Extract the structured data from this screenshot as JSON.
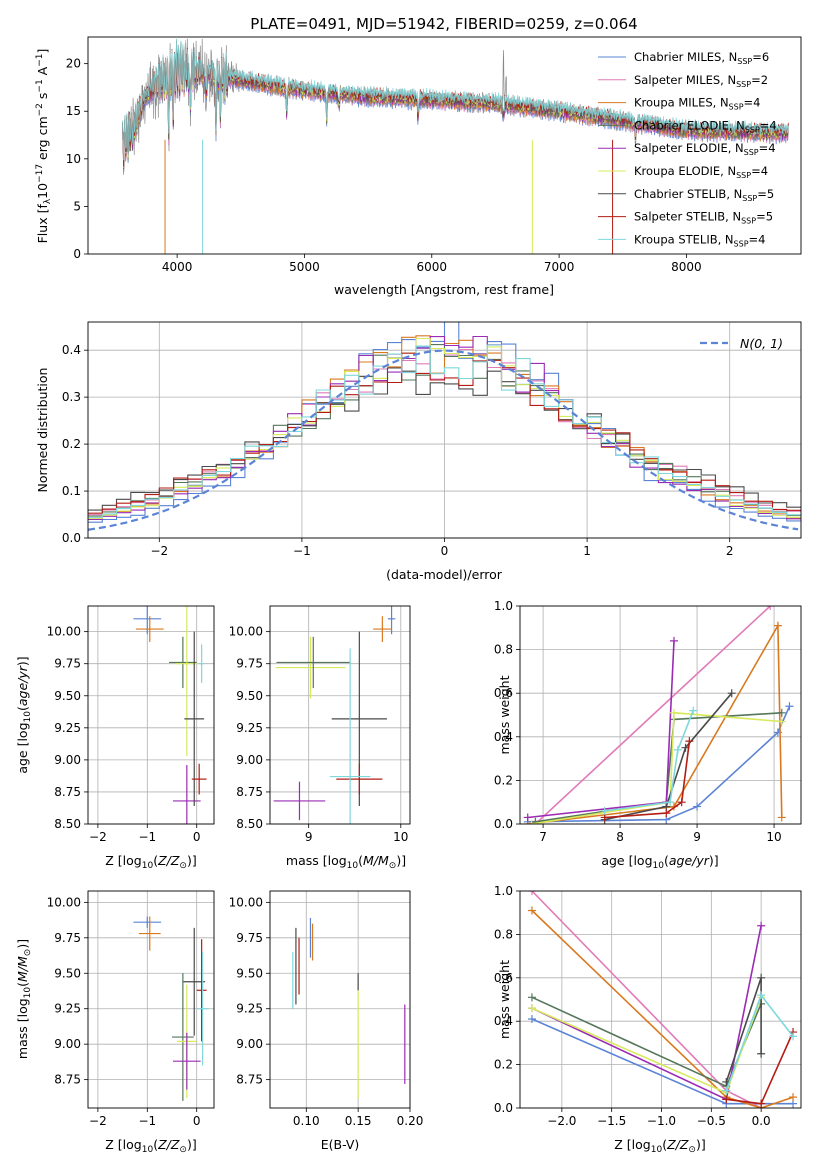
{
  "figure_title": "PLATE=0491, MJD=51942, FIBERID=0259, z=0.064",
  "colors": {
    "Chabrier MILES": "#5b84d6",
    "Salpeter MILES": "#e07bb8",
    "Kroupa MILES": "#d9791f",
    "Chabrier ELODIE": "#55775b",
    "Salpeter ELODIE": "#9b2bb4",
    "Kroupa ELODIE": "#d8ea5c",
    "Chabrier STELIB": "#4a4a4a",
    "Salpeter STELIB": "#b31d14",
    "Kroupa STELIB": "#7fd7dc",
    "data": "#888888",
    "gaussian": "#5b84d6"
  },
  "chart_data": [
    {
      "id": "spectrum",
      "type": "line",
      "xlabel": "wavelength [Angstrom, rest frame]",
      "ylabel": "Flux [f",
      "ylabel_full": "Flux [fλ10−17 erg cm−2 s−1 A−1]",
      "xlim": [
        3300,
        8900
      ],
      "ylim": [
        0,
        22.8
      ],
      "xticks": [
        "4000",
        "5000",
        "6000",
        "7000",
        "8000"
      ],
      "yticks": [
        "0",
        "5",
        "10",
        "15",
        "20"
      ],
      "legend_position": "top-right",
      "series": [
        {
          "name": "Chabrier MILES, NSSP=6",
          "label": "Chabrier MILES, N",
          "sub": "SSP",
          "suffix": "=6"
        },
        {
          "name": "Salpeter MILES, NSSP=2",
          "label": "Salpeter MILES, N",
          "sub": "SSP",
          "suffix": "=2"
        },
        {
          "name": "Kroupa MILES, NSSP=4",
          "label": "Kroupa MILES, N",
          "sub": "SSP",
          "suffix": "=4"
        },
        {
          "name": "Chabrier ELODIE, NSSP=4",
          "label": "Chabrier ELODIE, N",
          "sub": "SSP",
          "suffix": "=4"
        },
        {
          "name": "Salpeter ELODIE, NSSP=4",
          "label": "Salpeter ELODIE, N",
          "sub": "SSP",
          "suffix": "=4"
        },
        {
          "name": "Kroupa ELODIE, NSSP=4",
          "label": "Kroupa ELODIE, N",
          "sub": "SSP",
          "suffix": "=4"
        },
        {
          "name": "Chabrier STELIB, NSSP=5",
          "label": "Chabrier STELIB, N",
          "sub": "SSP",
          "suffix": "=5"
        },
        {
          "name": "Salpeter STELIB, NSSP=5",
          "label": "Salpeter STELIB, N",
          "sub": "SSP",
          "suffix": "=5"
        },
        {
          "name": "Kroupa STELIB, NSSP=4",
          "label": "Kroupa STELIB, N",
          "sub": "SSP",
          "suffix": "=4"
        }
      ],
      "continuum": [
        [
          3570,
          11.5
        ],
        [
          3650,
          13.0
        ],
        [
          3750,
          16.5
        ],
        [
          3850,
          18.0
        ],
        [
          3950,
          19.0
        ],
        [
          4050,
          19.5
        ],
        [
          4200,
          19.0
        ],
        [
          4400,
          18.5
        ],
        [
          4700,
          17.8
        ],
        [
          5000,
          17.2
        ],
        [
          5500,
          16.5
        ],
        [
          6000,
          16.2
        ],
        [
          6500,
          15.8
        ],
        [
          7000,
          15.0
        ],
        [
          7500,
          14.0
        ],
        [
          8000,
          13.0
        ],
        [
          8500,
          12.8
        ],
        [
          8800,
          12.7
        ]
      ],
      "absorption_lines": [
        [
          3933,
          5.0
        ],
        [
          3968,
          3.5
        ],
        [
          4102,
          4.0
        ],
        [
          4227,
          2.5
        ],
        [
          4304,
          5.0
        ],
        [
          4340,
          3.0
        ],
        [
          4861,
          2.5
        ],
        [
          5175,
          2.5
        ],
        [
          5270,
          1.5
        ],
        [
          5893,
          2.0
        ],
        [
          6563,
          1.5
        ],
        [
          7600,
          1.5
        ]
      ],
      "emission_lines": [
        [
          6563,
          22.0
        ],
        [
          6583,
          19.0
        ]
      ]
    },
    {
      "id": "residuals",
      "type": "bar",
      "xlabel": "(data-model)/error",
      "ylabel": "Normed distribution",
      "xlim": [
        -2.5,
        2.5
      ],
      "ylim": [
        0,
        0.46
      ],
      "xticks": [
        "−2",
        "−1",
        "0",
        "1",
        "2"
      ],
      "yticks": [
        "0.0",
        "0.1",
        "0.2",
        "0.3",
        "0.4"
      ],
      "legend_position": "top-right",
      "legend": "N(0, 1)",
      "bin_width": 0.1,
      "series_amplitudes": [
        0.43,
        0.36,
        0.39,
        0.37,
        0.4,
        0.39,
        0.33,
        0.35,
        0.38
      ]
    },
    {
      "id": "age-vs-Z",
      "type": "scatter",
      "xlabel": "Z [log10(Z/Z⊙)]",
      "ylabel": "age  [log10(age/yr)]",
      "xlim": [
        -2.2,
        0.35
      ],
      "ylim": [
        8.5,
        10.2
      ],
      "xticks": [
        "−2",
        "−1",
        "0"
      ],
      "yticks": [
        "8.50",
        "8.75",
        "9.00",
        "9.25",
        "9.50",
        "9.75",
        "10.00"
      ],
      "points": [
        {
          "series": "Chabrier MILES",
          "x": -1.0,
          "y": 10.1,
          "xerr": 0.28,
          "yerr": 0.12
        },
        {
          "series": "Kroupa MILES",
          "x": -0.95,
          "y": 10.02,
          "xerr": 0.28,
          "yerr": 0.1
        },
        {
          "series": "Chabrier ELODIE",
          "x": -0.28,
          "y": 9.76,
          "xerr": 0.28,
          "yerr": 0.2
        },
        {
          "series": "Kroupa ELODIE",
          "x": -0.2,
          "y": 9.75,
          "xerr": 0.22,
          "yerr": 0.72
        },
        {
          "series": "Salpeter ELODIE",
          "x": -0.2,
          "y": 8.68,
          "xerr": 0.28,
          "yerr": 0.28
        },
        {
          "series": "Chabrier STELIB",
          "x": -0.05,
          "y": 9.32,
          "xerr": 0.2,
          "yerr": 0.68
        },
        {
          "series": "Salpeter STELIB",
          "x": 0.05,
          "y": 8.85,
          "xerr": 0.15,
          "yerr": 0.12
        },
        {
          "series": "Kroupa STELIB",
          "x": 0.1,
          "y": 9.75,
          "xerr": 0.05,
          "yerr": 0.15
        }
      ]
    },
    {
      "id": "age-vs-mass",
      "type": "scatter",
      "xlabel": "mass [log10(M/M⊙)]",
      "ylabel": "",
      "xlim": [
        8.58,
        10.1
      ],
      "ylim": [
        8.5,
        10.2
      ],
      "xticks": [
        "9",
        "10"
      ],
      "yticks": [
        "8.50",
        "8.75",
        "9.00",
        "9.25",
        "9.50",
        "9.75",
        "10.00"
      ],
      "points": [
        {
          "series": "Chabrier MILES",
          "x": 9.9,
          "y": 10.1,
          "xerr": 0.04,
          "yerr": 0.12
        },
        {
          "series": "Kroupa MILES",
          "x": 9.8,
          "y": 10.02,
          "xerr": 0.1,
          "yerr": 0.1
        },
        {
          "series": "Kroupa ELODIE",
          "x": 9.02,
          "y": 9.72,
          "xerr": 0.38,
          "yerr": 0.24
        },
        {
          "series": "Chabrier ELODIE",
          "x": 9.05,
          "y": 9.76,
          "xerr": 0.4,
          "yerr": 0.2
        },
        {
          "series": "Salpeter ELODIE",
          "x": 8.9,
          "y": 8.68,
          "xerr": 0.28,
          "yerr": 0.15
        },
        {
          "series": "Chabrier STELIB",
          "x": 9.55,
          "y": 9.32,
          "xerr": 0.3,
          "yerr": 0.68
        },
        {
          "series": "Salpeter STELIB",
          "x": 9.55,
          "y": 8.85,
          "xerr": 0.25,
          "yerr": 0.12
        },
        {
          "series": "Kroupa STELIB",
          "x": 9.45,
          "y": 8.87,
          "xerr": 0.22,
          "yerr": 1.0
        }
      ]
    },
    {
      "id": "weight-vs-age",
      "type": "line",
      "xlabel": "age  [log10(age/yr)]",
      "ylabel": "mass weight",
      "xlim": [
        6.7,
        10.35
      ],
      "ylim": [
        0,
        1
      ],
      "xticks": [
        "7",
        "8",
        "9",
        "10"
      ],
      "yticks": [
        "0.0",
        "0.2",
        "0.4",
        "0.6",
        "0.8",
        "1.0"
      ],
      "series": [
        {
          "name": "Chabrier MILES",
          "x": [
            6.8,
            8.6,
            9.0,
            10.05,
            10.2
          ],
          "y": [
            0.01,
            0.02,
            0.08,
            0.42,
            0.54
          ]
        },
        {
          "name": "Salpeter MILES",
          "x": [
            6.9,
            9.95
          ],
          "y": [
            0.0,
            1.0
          ]
        },
        {
          "name": "Kroupa MILES",
          "x": [
            6.8,
            8.7,
            10.05,
            10.1
          ],
          "y": [
            0.0,
            0.08,
            0.91,
            0.03
          ]
        },
        {
          "name": "Chabrier ELODIE",
          "x": [
            6.9,
            8.6,
            8.7,
            10.1
          ],
          "y": [
            0.01,
            0.1,
            0.48,
            0.51
          ]
        },
        {
          "name": "Salpeter ELODIE",
          "x": [
            6.8,
            8.6,
            8.7
          ],
          "y": [
            0.03,
            0.1,
            0.84
          ]
        },
        {
          "name": "Kroupa ELODIE",
          "x": [
            6.85,
            8.65,
            8.7,
            10.1
          ],
          "y": [
            0.0,
            0.1,
            0.51,
            0.47
          ]
        },
        {
          "name": "Chabrier STELIB",
          "x": [
            7.8,
            8.6,
            8.85,
            9.45
          ],
          "y": [
            0.02,
            0.08,
            0.35,
            0.6
          ]
        },
        {
          "name": "Salpeter STELIB",
          "x": [
            7.8,
            8.6,
            8.8,
            8.9
          ],
          "y": [
            0.03,
            0.05,
            0.1,
            0.38
          ]
        },
        {
          "name": "Kroupa STELIB",
          "x": [
            7.8,
            8.65,
            8.75,
            8.95
          ],
          "y": [
            0.06,
            0.1,
            0.34,
            0.52
          ]
        }
      ]
    },
    {
      "id": "mass-vs-Z",
      "type": "scatter",
      "xlabel": "Z [log10(Z/Z⊙)]",
      "ylabel": "mass [log10(M/M⊙)]",
      "xlim": [
        -2.2,
        0.35
      ],
      "ylim": [
        8.55,
        10.08
      ],
      "xticks": [
        "−2",
        "−1",
        "0"
      ],
      "yticks": [
        "8.75",
        "9.00",
        "9.25",
        "9.50",
        "9.75",
        "10.00"
      ],
      "points": [
        {
          "series": "Chabrier MILES",
          "x": -1.0,
          "y": 9.86,
          "xerr": 0.28,
          "yerr": 0.04
        },
        {
          "series": "Kroupa MILES",
          "x": -0.95,
          "y": 9.78,
          "xerr": 0.22,
          "yerr": 0.12
        },
        {
          "series": "Chabrier STELIB",
          "x": -0.05,
          "y": 9.44,
          "xerr": 0.22,
          "yerr": 0.38
        },
        {
          "series": "Salpeter STELIB",
          "x": 0.1,
          "y": 9.38,
          "xerr": 0.1,
          "yerr": 0.36
        },
        {
          "series": "Kroupa STELIB",
          "x": 0.12,
          "y": 9.25,
          "xerr": 0.12,
          "yerr": 0.4
        },
        {
          "series": "Chabrier ELODIE",
          "x": -0.28,
          "y": 9.05,
          "xerr": 0.22,
          "yerr": 0.45
        },
        {
          "series": "Kroupa ELODIE",
          "x": -0.2,
          "y": 9.02,
          "xerr": 0.2,
          "yerr": 0.4
        },
        {
          "series": "Salpeter ELODIE",
          "x": -0.2,
          "y": 8.88,
          "xerr": 0.28,
          "yerr": 0.2
        }
      ]
    },
    {
      "id": "mass-vs-EBV",
      "type": "scatter",
      "xlabel": "E(B-V)",
      "ylabel": "",
      "xlim": [
        0.065,
        0.2
      ],
      "ylim": [
        8.55,
        10.08
      ],
      "xticks": [
        "0.10",
        "0.15",
        "0.20"
      ],
      "yticks": [
        "8.75",
        "9.00",
        "9.25",
        "9.50",
        "9.75",
        "10.00"
      ],
      "points": [
        {
          "series": "Kroupa STELIB",
          "x": 0.087,
          "y": 9.45,
          "yerr": 0.2
        },
        {
          "series": "Chabrier STELIB",
          "x": 0.09,
          "y": 9.55,
          "yerr": 0.27
        },
        {
          "series": "Salpeter STELIB",
          "x": 0.093,
          "y": 9.55,
          "yerr": 0.2
        },
        {
          "series": "Chabrier MILES",
          "x": 0.104,
          "y": 9.75,
          "yerr": 0.14
        },
        {
          "series": "Kroupa MILES",
          "x": 0.106,
          "y": 9.72,
          "yerr": 0.13
        },
        {
          "series": "Kroupa ELODIE",
          "x": 0.15,
          "y": 9.0,
          "yerr": 0.38
        },
        {
          "series": "Chabrier STELIB",
          "x": 0.15,
          "y": 9.44,
          "yerr": 0.06
        },
        {
          "series": "Salpeter ELODIE",
          "x": 0.195,
          "y": 9.0,
          "yerr": 0.28
        }
      ]
    },
    {
      "id": "weight-vs-Z",
      "type": "line",
      "xlabel": "Z [log10(Z/Z⊙)]",
      "ylabel": "mass weight",
      "xlim": [
        -2.42,
        0.4
      ],
      "ylim": [
        0,
        1
      ],
      "xticks": [
        "−2.0",
        "−1.5",
        "−1.0",
        "−0.5",
        "0.0"
      ],
      "yticks": [
        "0.0",
        "0.2",
        "0.4",
        "0.6",
        "0.8",
        "1.0"
      ],
      "series": [
        {
          "name": "Chabrier MILES",
          "x": [
            -2.3,
            -0.35,
            0.0,
            0.32
          ],
          "y": [
            0.41,
            0.02,
            0.02,
            0.02
          ]
        },
        {
          "name": "Salpeter MILES",
          "x": [
            -2.3,
            -0.35,
            0.0
          ],
          "y": [
            1.0,
            0.08,
            0.0
          ]
        },
        {
          "name": "Kroupa MILES",
          "x": [
            -2.3,
            -0.35,
            0.0,
            0.32
          ],
          "y": [
            0.91,
            0.05,
            0.0,
            0.05
          ]
        },
        {
          "name": "Chabrier ELODIE",
          "x": [
            -2.3,
            -0.35,
            0.0
          ],
          "y": [
            0.51,
            0.1,
            0.48
          ]
        },
        {
          "name": "Salpeter ELODIE",
          "x": [
            -2.3,
            -0.35,
            0.0
          ],
          "y": [
            0.46,
            0.04,
            0.84
          ]
        },
        {
          "name": "Kroupa ELODIE",
          "x": [
            -2.3,
            -0.35,
            0.0
          ],
          "y": [
            0.46,
            0.07,
            0.51
          ]
        },
        {
          "name": "Chabrier STELIB",
          "x": [
            -0.35,
            0.0,
            0.0
          ],
          "y": [
            0.12,
            0.6,
            0.25
          ]
        },
        {
          "name": "Salpeter STELIB",
          "x": [
            -0.35,
            0.0,
            0.32
          ],
          "y": [
            0.04,
            0.02,
            0.35
          ]
        },
        {
          "name": "Kroupa STELIB",
          "x": [
            -0.35,
            0.0,
            0.32
          ],
          "y": [
            0.08,
            0.52,
            0.33
          ]
        }
      ]
    }
  ]
}
